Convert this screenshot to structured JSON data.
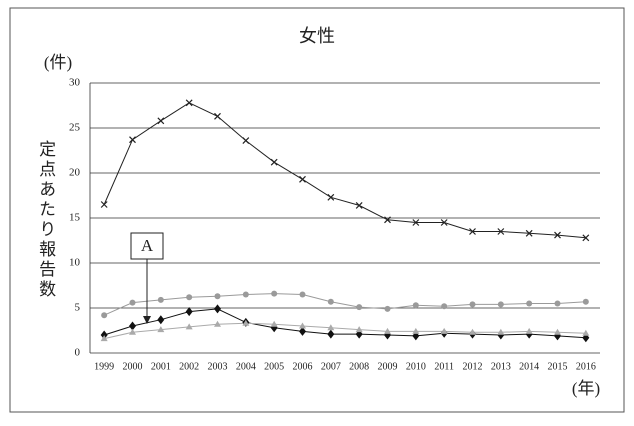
{
  "chart_data": {
    "type": "line",
    "title": "女性",
    "y_unit": "(件)",
    "y_label": "定点あたり報告数",
    "x_label": "(年)",
    "categories": [
      "1999",
      "2000",
      "2001",
      "2002",
      "2003",
      "2004",
      "2005",
      "2006",
      "2007",
      "2008",
      "2009",
      "2010",
      "2011",
      "2012",
      "2013",
      "2014",
      "2015",
      "2016"
    ],
    "series": [
      {
        "color": "#222222",
        "marker": "x",
        "values": [
          16.5,
          23.7,
          25.8,
          27.8,
          26.3,
          23.6,
          21.2,
          19.3,
          17.3,
          16.4,
          14.8,
          14.5,
          14.5,
          13.5,
          13.5,
          13.3,
          13.1,
          12.8
        ]
      },
      {
        "color": "#9a9a9a",
        "marker": "circle",
        "values": [
          4.2,
          5.6,
          5.9,
          6.2,
          6.3,
          6.5,
          6.6,
          6.5,
          5.7,
          5.1,
          4.9,
          5.3,
          5.2,
          5.4,
          5.4,
          5.5,
          5.5,
          5.7
        ]
      },
      {
        "color": "#111111",
        "marker": "diamond",
        "values": [
          2.0,
          3.0,
          3.7,
          4.6,
          4.9,
          3.4,
          2.8,
          2.4,
          2.1,
          2.1,
          2.0,
          1.9,
          2.2,
          2.1,
          2.0,
          2.1,
          1.9,
          1.7
        ]
      },
      {
        "color": "#aaaaaa",
        "marker": "triangle",
        "values": [
          1.6,
          2.3,
          2.6,
          2.9,
          3.2,
          3.3,
          3.2,
          3.0,
          2.8,
          2.6,
          2.4,
          2.4,
          2.4,
          2.3,
          2.3,
          2.4,
          2.3,
          2.2
        ]
      }
    ],
    "annotations": [
      {
        "text": "A"
      }
    ],
    "ylim": [
      0,
      30
    ],
    "yticks": [
      0,
      5,
      10,
      15,
      20,
      25,
      30
    ],
    "grid": true
  }
}
